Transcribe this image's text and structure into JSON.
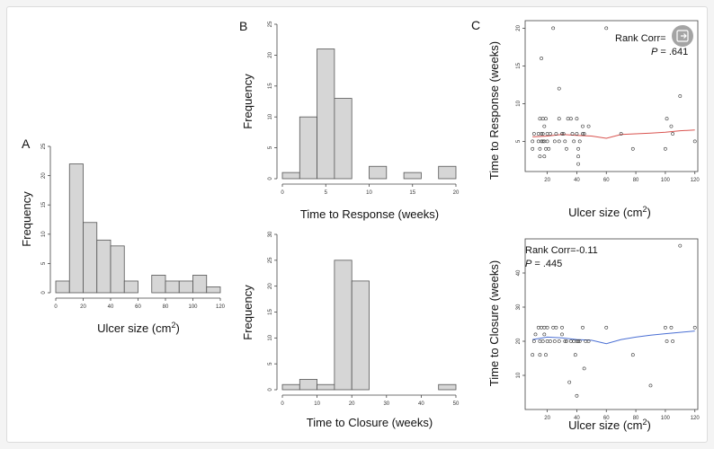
{
  "colors": {
    "bar_fill": "#d6d6d6",
    "bar_stroke": "#555555",
    "axis": "#444444",
    "point": "#333333",
    "smooth_response": "#d9534f",
    "smooth_closure": "#4a6fd4",
    "zoom_button": "#9a9a9a"
  },
  "icons": {
    "zoom": "zoom-expand-icon"
  },
  "chart_data": [
    {
      "id": "A",
      "panel_label": "A",
      "type": "bar",
      "subtype": "histogram",
      "xlabel": "Ulcer size (cm²)",
      "ylabel": "Frequency",
      "bin_edges": [
        0,
        10,
        20,
        30,
        40,
        50,
        60,
        70,
        80,
        90,
        100,
        110,
        120
      ],
      "values": [
        2,
        22,
        12,
        9,
        8,
        2,
        0,
        3,
        2,
        2,
        3,
        1
      ],
      "xlim": [
        0,
        120
      ],
      "ylim": [
        0,
        25
      ],
      "xticks": [
        0,
        20,
        40,
        60,
        80,
        100,
        120
      ],
      "yticks": [
        0,
        5,
        10,
        15,
        20,
        25
      ]
    },
    {
      "id": "B1",
      "panel_label": "B",
      "type": "bar",
      "subtype": "histogram",
      "xlabel": "Time to Response (weeks)",
      "ylabel": "Frequency",
      "bin_edges": [
        0,
        2,
        4,
        6,
        8,
        10,
        12,
        14,
        16,
        18,
        20
      ],
      "values": [
        1,
        10,
        21,
        13,
        0,
        2,
        0,
        1,
        0,
        2
      ],
      "xlim": [
        0,
        20
      ],
      "ylim": [
        0,
        25
      ],
      "xticks": [
        0,
        5,
        10,
        15,
        20
      ],
      "yticks": [
        0,
        5,
        10,
        15,
        20,
        25
      ]
    },
    {
      "id": "B2",
      "panel_label": "",
      "type": "bar",
      "subtype": "histogram",
      "xlabel": "Time to Closure (weeks)",
      "ylabel": "Frequency",
      "bin_edges": [
        0,
        5,
        10,
        15,
        20,
        25,
        30,
        35,
        40,
        45,
        50
      ],
      "values": [
        1,
        2,
        1,
        25,
        21,
        0,
        0,
        0,
        0,
        1
      ],
      "xlim": [
        0,
        50
      ],
      "ylim": [
        0,
        30
      ],
      "xticks": [
        0,
        10,
        20,
        30,
        40,
        50
      ],
      "yticks": [
        0,
        5,
        10,
        15,
        20,
        25,
        30
      ]
    },
    {
      "id": "C1",
      "panel_label": "C",
      "type": "scatter",
      "xlabel": "Ulcer size (cm²)",
      "ylabel": "Time to Response (weeks)",
      "xlim": [
        5,
        122
      ],
      "ylim": [
        1,
        21
      ],
      "xticks": [
        20,
        40,
        60,
        80,
        100,
        120
      ],
      "yticks": [
        5,
        10,
        15,
        20
      ],
      "annotation": {
        "text": "Rank Corr=",
        "p_label": "P",
        "p_value": " = .641"
      },
      "points": [
        [
          10,
          4
        ],
        [
          10,
          5
        ],
        [
          11,
          6
        ],
        [
          14,
          5
        ],
        [
          14,
          6
        ],
        [
          15,
          3
        ],
        [
          15,
          4
        ],
        [
          15,
          8
        ],
        [
          16,
          5
        ],
        [
          16,
          6
        ],
        [
          16,
          16
        ],
        [
          17,
          5
        ],
        [
          17,
          6
        ],
        [
          17,
          8
        ],
        [
          18,
          3
        ],
        [
          18,
          5
        ],
        [
          18,
          7
        ],
        [
          19,
          4
        ],
        [
          19,
          8
        ],
        [
          20,
          5
        ],
        [
          20,
          6
        ],
        [
          21,
          4
        ],
        [
          22,
          6
        ],
        [
          24,
          20
        ],
        [
          25,
          5
        ],
        [
          26,
          6
        ],
        [
          28,
          5
        ],
        [
          28,
          12
        ],
        [
          28,
          8
        ],
        [
          30,
          6
        ],
        [
          31,
          6
        ],
        [
          32,
          5
        ],
        [
          33,
          4
        ],
        [
          34,
          8
        ],
        [
          36,
          8
        ],
        [
          37,
          6
        ],
        [
          38,
          5
        ],
        [
          40,
          8
        ],
        [
          40,
          6
        ],
        [
          41,
          4
        ],
        [
          41,
          2
        ],
        [
          41,
          3
        ],
        [
          42,
          5
        ],
        [
          44,
          6
        ],
        [
          44,
          7
        ],
        [
          45,
          6
        ],
        [
          48,
          7
        ],
        [
          60,
          20
        ],
        [
          70,
          6
        ],
        [
          78,
          4
        ],
        [
          100,
          4
        ],
        [
          101,
          8
        ],
        [
          104,
          7
        ],
        [
          105,
          6
        ],
        [
          110,
          11
        ],
        [
          120,
          5
        ]
      ],
      "smooth": [
        [
          10,
          5.6
        ],
        [
          20,
          5.7
        ],
        [
          30,
          5.9
        ],
        [
          40,
          5.8
        ],
        [
          50,
          5.7
        ],
        [
          60,
          5.4
        ],
        [
          70,
          5.9
        ],
        [
          80,
          6.0
        ],
        [
          90,
          6.1
        ],
        [
          100,
          6.2
        ],
        [
          110,
          6.4
        ],
        [
          120,
          6.5
        ]
      ]
    },
    {
      "id": "C2",
      "panel_label": "",
      "type": "scatter",
      "xlabel": "Ulcer size (cm²)",
      "ylabel": "Time to Closure (weeks)",
      "xlim": [
        5,
        122
      ],
      "ylim": [
        0,
        50
      ],
      "xticks": [
        20,
        40,
        60,
        80,
        100,
        120
      ],
      "yticks": [
        10,
        20,
        30,
        40
      ],
      "annotation": {
        "text": "Rank Corr=-0.11",
        "p_label": "P",
        "p_value": " = .445"
      },
      "points": [
        [
          10,
          16
        ],
        [
          11,
          20
        ],
        [
          12,
          22
        ],
        [
          14,
          24
        ],
        [
          15,
          16
        ],
        [
          15,
          20
        ],
        [
          16,
          24
        ],
        [
          17,
          20
        ],
        [
          18,
          24
        ],
        [
          18,
          22
        ],
        [
          19,
          16
        ],
        [
          20,
          24
        ],
        [
          20,
          20
        ],
        [
          22,
          20
        ],
        [
          24,
          24
        ],
        [
          25,
          20
        ],
        [
          26,
          24
        ],
        [
          28,
          20
        ],
        [
          30,
          24
        ],
        [
          30,
          22
        ],
        [
          32,
          20
        ],
        [
          33,
          20
        ],
        [
          35,
          8
        ],
        [
          36,
          20
        ],
        [
          38,
          20
        ],
        [
          39,
          16
        ],
        [
          40,
          4
        ],
        [
          40,
          20
        ],
        [
          41,
          20
        ],
        [
          42,
          20
        ],
        [
          44,
          24
        ],
        [
          45,
          12
        ],
        [
          46,
          20
        ],
        [
          48,
          20
        ],
        [
          60,
          24
        ],
        [
          78,
          16
        ],
        [
          90,
          7
        ],
        [
          100,
          24
        ],
        [
          101,
          20
        ],
        [
          104,
          24
        ],
        [
          105,
          20
        ],
        [
          110,
          48
        ],
        [
          120,
          24
        ]
      ],
      "smooth": [
        [
          10,
          20.5
        ],
        [
          20,
          21.2
        ],
        [
          30,
          21.0
        ],
        [
          40,
          20.5
        ],
        [
          50,
          20.3
        ],
        [
          60,
          19.3
        ],
        [
          70,
          20.5
        ],
        [
          80,
          21.2
        ],
        [
          90,
          21.8
        ],
        [
          100,
          22.2
        ],
        [
          110,
          22.6
        ],
        [
          120,
          23.0
        ]
      ]
    }
  ]
}
